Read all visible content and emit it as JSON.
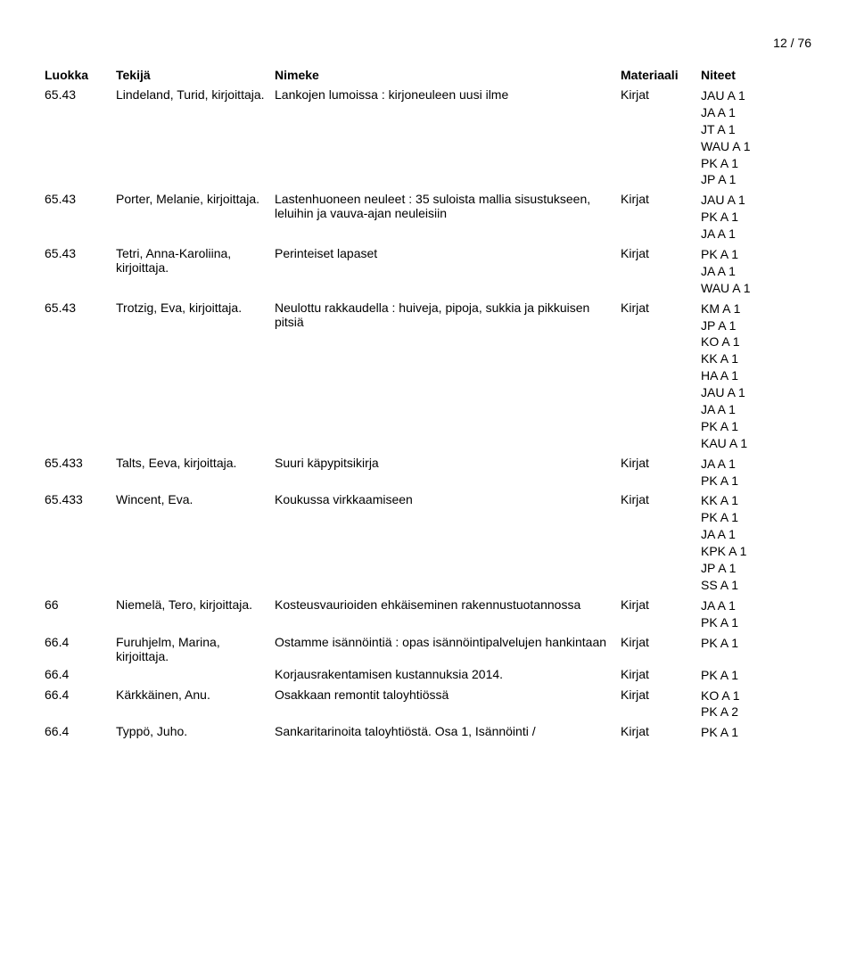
{
  "pageNumber": "12 / 76",
  "headers": {
    "luokka": "Luokka",
    "tekija": "Tekijä",
    "nimeke": "Nimeke",
    "materiaali": "Materiaali",
    "niteet": "Niteet"
  },
  "rows": [
    {
      "luokka": "65.43",
      "tekija": "Lindeland, Turid, kirjoittaja.",
      "nimeke": "Lankojen lumoissa : kirjoneuleen uusi ilme",
      "materiaali": "Kirjat",
      "niteet": [
        "JAU A 1",
        "JA A 1",
        "JT A 1",
        "WAU A 1",
        "PK A 1",
        "JP A 1"
      ]
    },
    {
      "luokka": "65.43",
      "tekija": "Porter, Melanie, kirjoittaja.",
      "nimeke": "Lastenhuoneen neuleet : 35 suloista mallia sisustukseen, leluihin ja vauva-ajan neuleisiin",
      "materiaali": "Kirjat",
      "niteet": [
        "JAU A 1",
        "PK A 1",
        "JA A 1"
      ]
    },
    {
      "luokka": "65.43",
      "tekija": "Tetri, Anna-Karoliina, kirjoittaja.",
      "nimeke": "Perinteiset lapaset",
      "materiaali": "Kirjat",
      "niteet": [
        "PK A 1",
        "JA A 1",
        "WAU A 1"
      ]
    },
    {
      "luokka": "65.43",
      "tekija": "Trotzig, Eva, kirjoittaja.",
      "nimeke": "Neulottu rakkaudella : huiveja, pipoja, sukkia ja pikkuisen pitsiä",
      "materiaali": "Kirjat",
      "niteet": [
        "KM A 1",
        "JP A 1",
        "KO A 1",
        "KK A 1",
        "HA A 1",
        "JAU A 1",
        "JA A 1",
        "PK A 1",
        "KAU A 1"
      ]
    },
    {
      "luokka": "65.433",
      "tekija": "Talts, Eeva, kirjoittaja.",
      "nimeke": "Suuri käpypitsikirja",
      "materiaali": "Kirjat",
      "niteet": [
        "JA A 1",
        "PK A 1"
      ]
    },
    {
      "luokka": "65.433",
      "tekija": "Wincent, Eva.",
      "nimeke": "Koukussa virkkaamiseen",
      "materiaali": "Kirjat",
      "niteet": [
        "KK A 1",
        "PK A 1",
        "JA A 1",
        "KPK A 1",
        "JP A 1",
        "SS A 1"
      ]
    },
    {
      "luokka": "66",
      "tekija": "Niemelä, Tero, kirjoittaja.",
      "nimeke": "Kosteusvaurioiden ehkäiseminen rakennustuotannossa",
      "materiaali": "Kirjat",
      "niteet": [
        "JA A 1",
        "PK A 1"
      ]
    },
    {
      "luokka": "66.4",
      "tekija": "Furuhjelm, Marina, kirjoittaja.",
      "nimeke": "Ostamme isännöintiä : opas isännöintipalvelujen hankintaan",
      "materiaali": "Kirjat",
      "niteet": [
        "PK A 1"
      ]
    },
    {
      "luokka": "66.4",
      "tekija": "",
      "nimeke": "Korjausrakentamisen kustannuksia 2014.",
      "materiaali": "Kirjat",
      "niteet": [
        "PK A 1"
      ]
    },
    {
      "luokka": "66.4",
      "tekija": "Kärkkäinen, Anu.",
      "nimeke": "Osakkaan remontit taloyhtiössä",
      "materiaali": "Kirjat",
      "niteet": [
        "KO A 1",
        "PK A 2"
      ]
    },
    {
      "luokka": "66.4",
      "tekija": "Typpö, Juho.",
      "nimeke": "Sankaritarinoita taloyhtiöstä. Osa 1, Isännöinti /",
      "materiaali": "Kirjat",
      "niteet": [
        "PK A 1"
      ]
    }
  ]
}
